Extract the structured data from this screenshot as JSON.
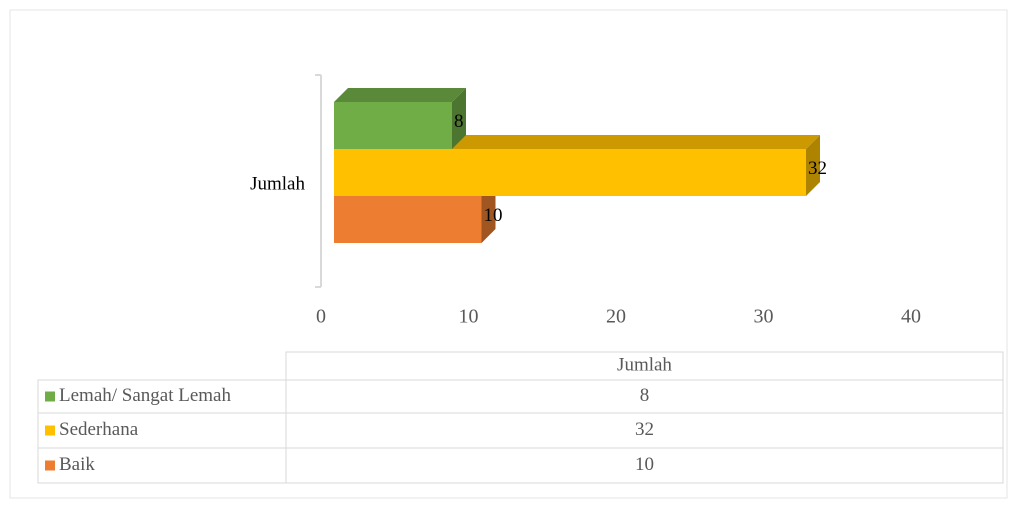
{
  "chart_data": {
    "type": "bar3d_horizontal",
    "categories": [
      "Jumlah"
    ],
    "series": [
      {
        "name": "Lemah/ Sangat Lemah",
        "color": "#70ad47",
        "values": [
          8
        ]
      },
      {
        "name": "Sederhana",
        "color": "#ffc000",
        "values": [
          32
        ]
      },
      {
        "name": "Baik",
        "color": "#ed7d31",
        "values": [
          10
        ]
      }
    ],
    "xlim": [
      0,
      40
    ],
    "xticks": [
      0,
      10,
      20,
      30,
      40
    ],
    "grid": false,
    "data_table": true
  }
}
